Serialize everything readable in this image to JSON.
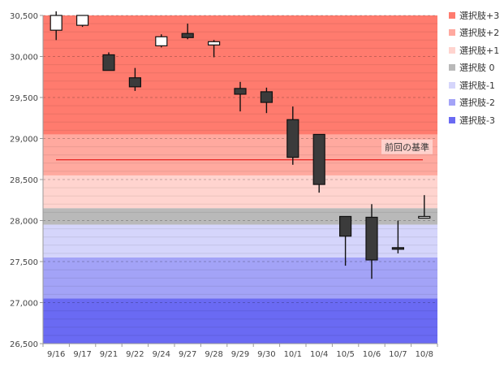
{
  "chart_data": {
    "type": "candlestick",
    "categories": [
      "9/16",
      "9/17",
      "9/21",
      "9/22",
      "9/24",
      "9/27",
      "9/28",
      "9/29",
      "9/30",
      "10/1",
      "10/4",
      "10/5",
      "10/6",
      "10/7",
      "10/8"
    ],
    "candles": [
      {
        "open": 30320,
        "high": 30550,
        "low": 30200,
        "close": 30500
      },
      {
        "open": 30380,
        "high": 30500,
        "low": 30360,
        "close": 30500
      },
      {
        "open": 30020,
        "high": 30050,
        "low": 29830,
        "close": 29830
      },
      {
        "open": 29740,
        "high": 29860,
        "low": 29580,
        "close": 29630
      },
      {
        "open": 30130,
        "high": 30270,
        "low": 30110,
        "close": 30240
      },
      {
        "open": 30280,
        "high": 30400,
        "low": 30210,
        "close": 30230
      },
      {
        "open": 30140,
        "high": 30200,
        "low": 29990,
        "close": 30180
      },
      {
        "open": 29610,
        "high": 29690,
        "low": 29330,
        "close": 29540
      },
      {
        "open": 29570,
        "high": 29620,
        "low": 29310,
        "close": 29440
      },
      {
        "open": 29230,
        "high": 29390,
        "low": 28680,
        "close": 28770
      },
      {
        "open": 29050,
        "high": 29050,
        "low": 28340,
        "close": 28440
      },
      {
        "open": 28050,
        "high": 28050,
        "low": 27450,
        "close": 27810
      },
      {
        "open": 28040,
        "high": 28200,
        "low": 27290,
        "close": 27520
      },
      {
        "open": 27670,
        "high": 28000,
        "low": 27600,
        "close": 27660
      },
      {
        "open": 28030,
        "high": 28310,
        "low": 28030,
        "close": 28050
      }
    ],
    "ylim": [
      26500,
      30500
    ],
    "yticks": [
      "26,500",
      "27,000",
      "27,500",
      "28,000",
      "28,500",
      "29,000",
      "29,500",
      "30,000",
      "30,500"
    ],
    "ytick_values": [
      26500,
      27000,
      27500,
      28000,
      28500,
      29000,
      29500,
      30000,
      30500
    ],
    "reference_line": {
      "label": "前回の基準",
      "value": 28740,
      "color": "#e00000"
    },
    "bands": [
      {
        "label": "選択肢+3",
        "from": 29050,
        "to": 30500,
        "color": "#ff7b6e"
      },
      {
        "label": "選択肢+2",
        "from": 28550,
        "to": 29050,
        "color": "#ffa99f"
      },
      {
        "label": "選択肢+1",
        "from": 28150,
        "to": 28550,
        "color": "#ffd4cf"
      },
      {
        "label": "選択肢 0",
        "from": 27950,
        "to": 28150,
        "color": "#b9b9b9"
      },
      {
        "label": "選択肢-1",
        "from": 27550,
        "to": 27950,
        "color": "#d5d5fb"
      },
      {
        "label": "選択肢-2",
        "from": 27050,
        "to": 27550,
        "color": "#a3a3f7"
      },
      {
        "label": "選択肢-3",
        "from": 26500,
        "to": 27050,
        "color": "#6a6af3"
      }
    ],
    "up_color": "#ffffff",
    "down_color": "#3b3b3b",
    "grid": true,
    "legend_position": "right"
  }
}
